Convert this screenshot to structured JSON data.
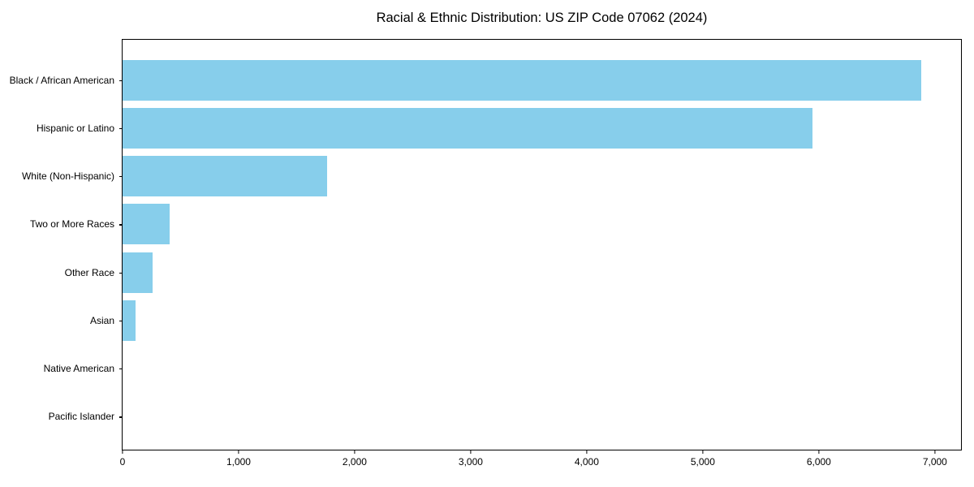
{
  "chart_data": {
    "type": "bar",
    "orientation": "horizontal",
    "title": "Racial & Ethnic Distribution: US ZIP Code 07062 (2024)",
    "categories": [
      "Black / African American",
      "Hispanic or Latino",
      "White (Non-Hispanic)",
      "Two or More Races",
      "Other Race",
      "Asian",
      "Native American",
      "Pacific Islander"
    ],
    "values": [
      6880,
      5945,
      1765,
      405,
      258,
      112,
      0,
      0
    ],
    "xlabel": "",
    "ylabel": "",
    "xlim": [
      0,
      7225
    ],
    "x_ticks": [
      0,
      1000,
      2000,
      3000,
      4000,
      5000,
      6000,
      7000
    ],
    "x_tick_labels": [
      "0",
      "1,000",
      "2,000",
      "3,000",
      "4,000",
      "5,000",
      "6,000",
      "7,000"
    ],
    "grid": false,
    "legend": null,
    "bar_color": "#87CEEB",
    "axis_color": "#000000",
    "background_color": "#FFFFFF"
  }
}
